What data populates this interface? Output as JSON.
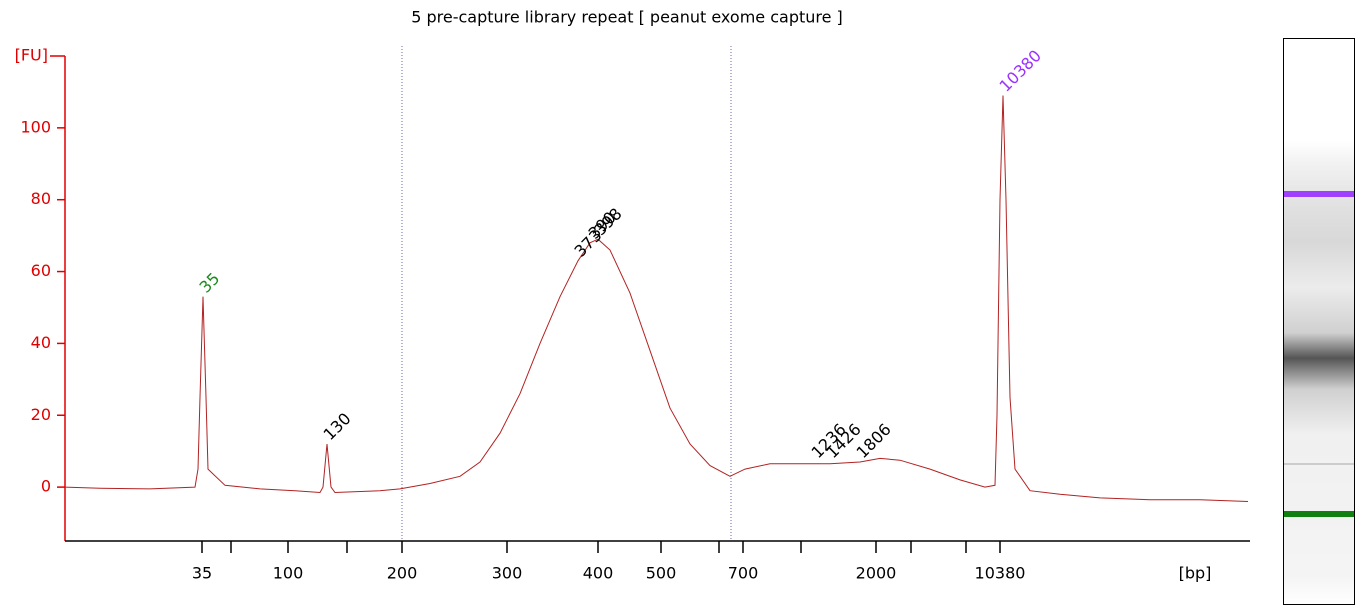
{
  "chart_data": {
    "type": "line",
    "title": "5 pre-capture library repeat  [ peanut exome capture ]",
    "x_label": "[bp]",
    "y_label": "[FU]",
    "x": [
      0,
      3.5,
      8.5,
      13,
      13.3,
      13.5,
      13.8,
      14.1,
      14.3,
      16,
      19.5,
      23,
      25.5,
      25.8,
      26,
      26.2,
      26.4,
      26.6,
      27,
      31.5,
      33.5,
      36.5,
      39.5,
      41.5,
      43.5,
      45.5,
      47.5,
      49.5,
      51.3,
      52.5,
      53.3,
      54.5,
      56.5,
      58.5,
      60.5,
      62.5,
      64.5,
      66.5,
      68,
      70.5,
      73.5,
      76.5,
      79.5,
      81.5,
      83.5,
      86.5,
      89.5,
      92,
      93,
      93.2,
      93.5,
      93.8,
      94.1,
      94.5,
      95,
      96.5,
      99.5,
      103.5,
      108.5,
      113.5,
      118.3
    ],
    "series": [
      {
        "color": "#b22222",
        "values": [
          0,
          -0.3,
          -0.5,
          0,
          5,
          25,
          53,
          25,
          5,
          0.5,
          -0.5,
          -1,
          -1.5,
          0,
          6,
          12,
          6,
          0,
          -1.5,
          -1,
          -0.5,
          1,
          3,
          7,
          15,
          26,
          40,
          53,
          63,
          68,
          69,
          66,
          54,
          38,
          22,
          12,
          6,
          3,
          5,
          6.5,
          6.5,
          6.5,
          7,
          8,
          7.5,
          5,
          2,
          0,
          0.5,
          20,
          80,
          109,
          80,
          25,
          5,
          -1,
          -2,
          -3,
          -3.5,
          -3.5,
          -4
        ]
      }
    ],
    "xlim": [
      0,
      118.5
    ],
    "xticks": [
      {
        "value": 13.7,
        "label": "35"
      },
      {
        "value": 22.3,
        "label": "100"
      },
      {
        "value": 33.7,
        "label": "200"
      },
      {
        "value": 44.2,
        "label": "300"
      },
      {
        "value": 53.3,
        "label": "400"
      },
      {
        "value": 59.6,
        "label": "500"
      },
      {
        "value": 67.8,
        "label": "700"
      },
      {
        "value": 81.1,
        "label": "2000"
      },
      {
        "value": 93.5,
        "label": "10380"
      }
    ],
    "minor_xticks": [
      16.6,
      28.2,
      65.4,
      73.6,
      84.6,
      90.1
    ],
    "ylim": [
      -15,
      120
    ],
    "yticks": [
      0,
      20,
      40,
      60,
      80,
      100
    ],
    "axis_color": "#e00000",
    "markers": [
      33.7,
      66.6
    ],
    "peaks": [
      {
        "size": 35,
        "x": 13.8,
        "y": 53,
        "color": "#1a8a1a"
      },
      {
        "size": 130,
        "x": 26.2,
        "y": 12,
        "color": "#000000"
      },
      {
        "size": 373,
        "x": 51.3,
        "y": 63,
        "color": "#000000"
      },
      {
        "size": 390,
        "x": 52.7,
        "y": 68,
        "color": "#000000"
      },
      {
        "size": 398,
        "x": 53.3,
        "y": 69,
        "color": "#000000"
      },
      {
        "size": 1236,
        "x": 75,
        "y": 7,
        "color": "#000000"
      },
      {
        "size": 1426,
        "x": 76.5,
        "y": 7,
        "color": "#000000"
      },
      {
        "size": 1806,
        "x": 79.5,
        "y": 7,
        "color": "#000000"
      },
      {
        "size": 10380,
        "x": 93.8,
        "y": 109,
        "color": "#9b30ff"
      }
    ]
  }
}
